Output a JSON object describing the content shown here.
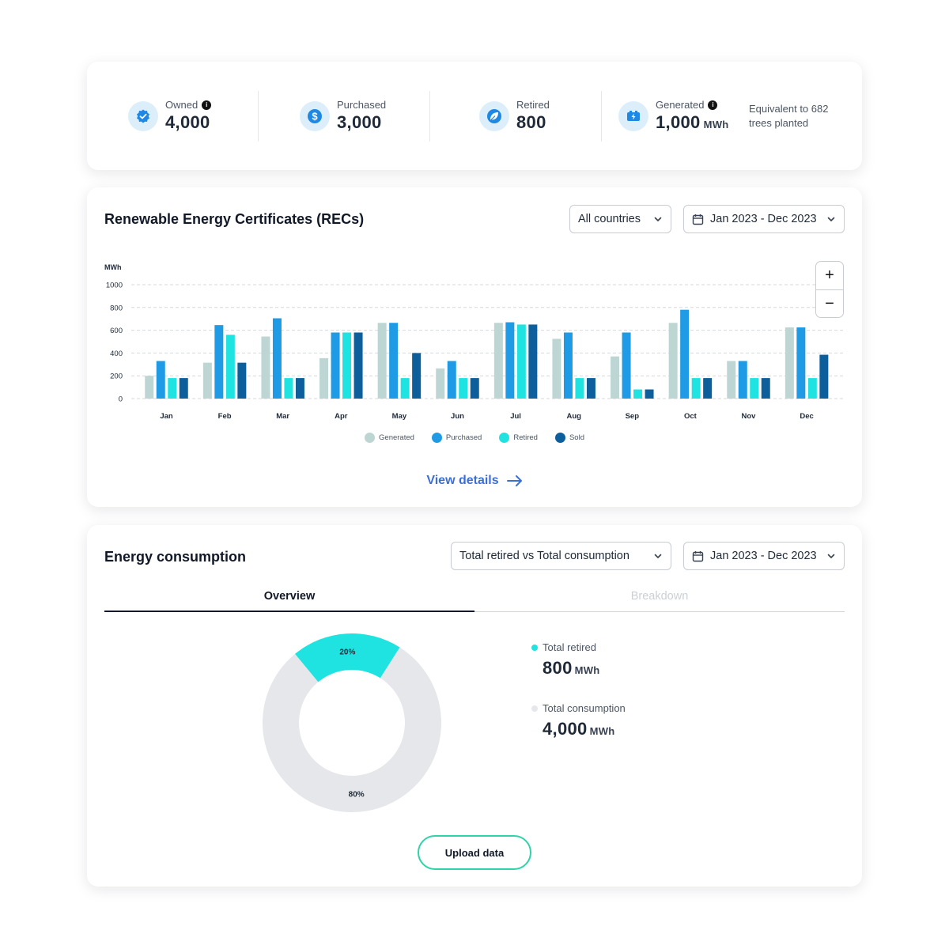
{
  "kpis": [
    {
      "label": "Owned",
      "value": "4,000",
      "unit": "",
      "icon": "verified-badge-icon",
      "info": true
    },
    {
      "label": "Purchased",
      "value": "3,000",
      "unit": "",
      "icon": "dollar-icon",
      "info": false
    },
    {
      "label": "Retired",
      "value": "800",
      "unit": "",
      "icon": "leaf-icon",
      "info": false
    },
    {
      "label": "Generated",
      "value": "1,000",
      "unit": "MWh",
      "icon": "battery-bolt-icon",
      "info": true
    }
  ],
  "equivalent_text": "Equivalent to 682 trees planted",
  "recs": {
    "title": "Renewable Energy Certificates (RECs)",
    "country_filter": "All countries",
    "date_range": "Jan 2023 - Dec 2023",
    "zoom_in": "+",
    "zoom_out": "−",
    "view_details": "View details"
  },
  "chart_data": {
    "type": "bar",
    "ylabel": "MWh",
    "ylim": [
      0,
      1000
    ],
    "yticks": [
      0,
      200,
      400,
      600,
      800,
      1000
    ],
    "grid": true,
    "legend_placement": "bottom-center",
    "categories": [
      "Jan",
      "Feb",
      "Mar",
      "Apr",
      "May",
      "Jun",
      "Jul",
      "Aug",
      "Sep",
      "Oct",
      "Nov",
      "Dec"
    ],
    "series": [
      {
        "name": "Generated",
        "color": "#bdd6d3",
        "values": [
          200,
          315,
          545,
          355,
          665,
          265,
          665,
          525,
          370,
          665,
          330,
          625
        ]
      },
      {
        "name": "Purchased",
        "color": "#1e9be4",
        "values": [
          330,
          645,
          705,
          580,
          665,
          330,
          670,
          580,
          580,
          780,
          330,
          625
        ]
      },
      {
        "name": "Retired",
        "color": "#1ee3e0",
        "values": [
          180,
          560,
          180,
          580,
          180,
          180,
          650,
          180,
          80,
          180,
          180,
          180
        ]
      },
      {
        "name": "Sold",
        "color": "#0c5f9b",
        "values": [
          180,
          315,
          180,
          580,
          400,
          180,
          650,
          180,
          80,
          180,
          180,
          385
        ]
      }
    ]
  },
  "energy": {
    "title": "Energy consumption",
    "comparison_filter": "Total retired vs Total consumption",
    "date_range": "Jan 2023 - Dec 2023",
    "tabs": [
      "Overview",
      "Breakdown"
    ],
    "active_tab": "Overview",
    "donut": {
      "slices": [
        {
          "name": "Total retired",
          "percent": 20,
          "label": "20%",
          "color": "#1ee3e0"
        },
        {
          "name": "Total consumption",
          "percent": 80,
          "label": "80%",
          "color": "#e5e7eb"
        }
      ]
    },
    "stats": [
      {
        "label": "Total retired",
        "value": "800",
        "unit": "MWh",
        "color": "#1ee3e0"
      },
      {
        "label": "Total consumption",
        "value": "4,000",
        "unit": "MWh",
        "color": "#e5e7eb"
      }
    ],
    "upload_button": "Upload data"
  }
}
